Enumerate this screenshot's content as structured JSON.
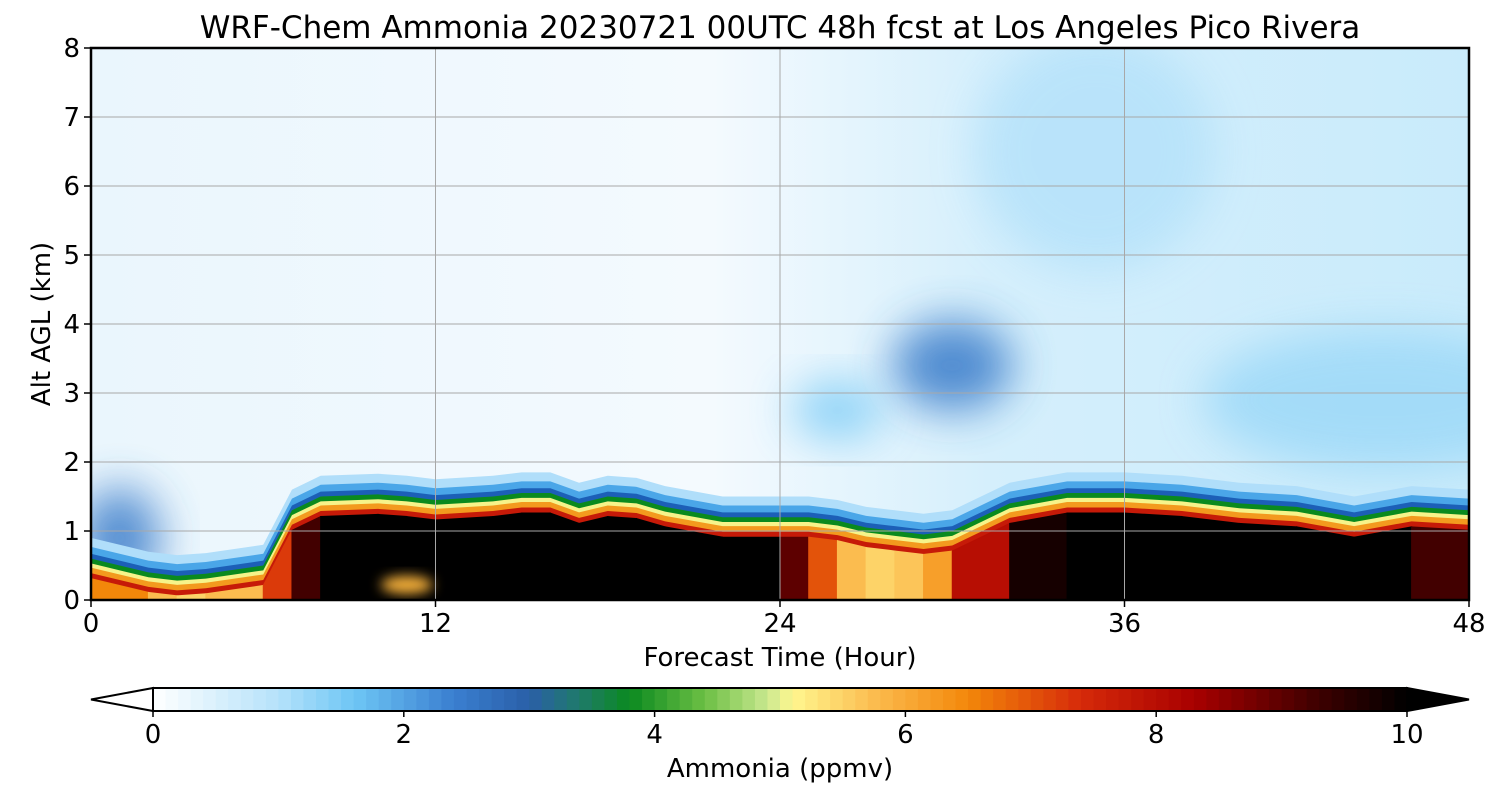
{
  "chart_data": {
    "type": "heatmap",
    "title": "WRF-Chem Ammonia  20230721 00UTC 48h fcst at Los Angeles Pico Rivera",
    "xlabel": "Forecast Time (Hour)",
    "ylabel": "Alt AGL (km)",
    "xlim": [
      0,
      48
    ],
    "ylim": [
      0,
      8
    ],
    "x_ticks": [
      0,
      12,
      24,
      36,
      48
    ],
    "x_tick_labels": [
      "0",
      "12",
      "24",
      "36",
      "48"
    ],
    "y_ticks": [
      0,
      1,
      2,
      3,
      4,
      5,
      6,
      7,
      8
    ],
    "y_tick_labels": [
      "0",
      "1",
      "2",
      "3",
      "4",
      "5",
      "6",
      "7",
      "8"
    ],
    "grid": true,
    "colorbar": {
      "label": "Ammonia  (ppmv)",
      "range": [
        0,
        10
      ],
      "extend": "both",
      "ticks": [
        0,
        2,
        4,
        6,
        8,
        10
      ],
      "tick_labels": [
        "0",
        "2",
        "4",
        "6",
        "8",
        "10"
      ]
    },
    "x": [
      0,
      2,
      3,
      4,
      6,
      7,
      8,
      10,
      11,
      12,
      14,
      15,
      16,
      17,
      18,
      19,
      20,
      22,
      24,
      25,
      26,
      27,
      28,
      29,
      30,
      32,
      34,
      36,
      38,
      40,
      42,
      44,
      46,
      48
    ],
    "boundary_layer_top_km": [
      0.55,
      0.35,
      0.3,
      0.33,
      0.45,
      1.25,
      1.45,
      1.48,
      1.45,
      1.4,
      1.45,
      1.5,
      1.5,
      1.35,
      1.45,
      1.42,
      1.3,
      1.15,
      1.15,
      1.15,
      1.1,
      1.0,
      0.95,
      0.9,
      0.95,
      1.35,
      1.5,
      1.5,
      1.45,
      1.35,
      1.3,
      1.15,
      1.3,
      1.25
    ],
    "boundary_layer_ammonia_ppmv": [
      7,
      6,
      5.5,
      5.5,
      6,
      8.5,
      10,
      10,
      10,
      10,
      10,
      10,
      10,
      10,
      10,
      10,
      10,
      10,
      10,
      8,
      6,
      5.5,
      5.5,
      5.8,
      6.5,
      9.5,
      10,
      10,
      10,
      10,
      10,
      10,
      10,
      8.5
    ],
    "free_troposphere_features": [
      {
        "x": 30,
        "y": 3.4,
        "value": 2.5
      },
      {
        "x": 26,
        "y": 2.75,
        "value": 1.5
      },
      {
        "x": 1,
        "y": 0.9,
        "value": 2.5
      },
      {
        "x": 45,
        "y": 2.9,
        "value": 1.2
      },
      {
        "x": 35,
        "y": 6.5,
        "value": 1.0
      }
    ]
  }
}
